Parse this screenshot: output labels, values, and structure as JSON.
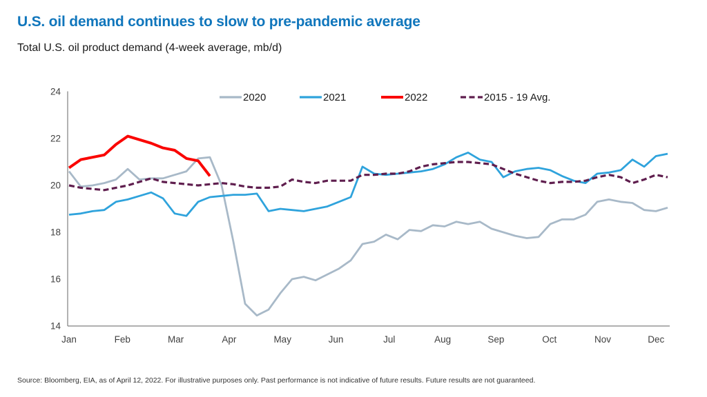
{
  "header": {
    "title": "U.S. oil demand continues to slow to pre-pandemic average",
    "subtitle": "Total U.S. oil product demand (4-week average, mb/d)"
  },
  "footer": {
    "source": "Source: Bloomberg, EIA, as of April 12, 2022. For illustrative purposes only. Past performance is not indicative of future results. Future results are not guaranteed."
  },
  "colors": {
    "title_accent": "#1076bc",
    "axis_line": "#7f7f7f",
    "tick_label": "#404040",
    "legend_text": "#1a1a1a"
  },
  "chart_data": {
    "type": "line",
    "title": "Total U.S. oil product demand (4-week average, mb/d)",
    "xlabel": "",
    "ylabel": "",
    "ylim": [
      14,
      24
    ],
    "yticks": [
      14,
      16,
      18,
      20,
      22,
      24
    ],
    "grid": false,
    "legend_position": "top",
    "categories": [
      "Jan",
      "Feb",
      "Mar",
      "Apr",
      "May",
      "Jun",
      "Jul",
      "Aug",
      "Sep",
      "Oct",
      "Nov",
      "Dec"
    ],
    "x_unit": "weekly points (4-week average)",
    "points_per_year": 52,
    "series": [
      {
        "name": "2020",
        "color": "#a8b9c8",
        "width": 2.8,
        "dash": null,
        "values": [
          20.6,
          19.95,
          20.0,
          20.1,
          20.25,
          20.7,
          20.25,
          20.3,
          20.3,
          20.45,
          20.6,
          21.15,
          21.2,
          20.0,
          17.6,
          14.95,
          14.45,
          14.7,
          15.4,
          16.0,
          16.1,
          15.95,
          16.2,
          16.45,
          16.8,
          17.5,
          17.6,
          17.9,
          17.7,
          18.1,
          18.05,
          18.3,
          18.25,
          18.45,
          18.35,
          18.45,
          18.15,
          18.0,
          17.85,
          17.75,
          17.8,
          18.35,
          18.55,
          18.55,
          18.75,
          19.3,
          19.4,
          19.3,
          19.25,
          18.95,
          18.9,
          19.05
        ]
      },
      {
        "name": "2021",
        "color": "#2fa3dc",
        "width": 2.8,
        "dash": null,
        "values": [
          18.75,
          18.8,
          18.9,
          18.95,
          19.3,
          19.4,
          19.55,
          19.7,
          19.45,
          18.8,
          18.7,
          19.3,
          19.5,
          19.55,
          19.6,
          19.6,
          19.65,
          18.9,
          19.0,
          18.95,
          18.9,
          19.0,
          19.1,
          19.3,
          19.5,
          20.8,
          20.5,
          20.45,
          20.5,
          20.55,
          20.6,
          20.7,
          20.9,
          21.2,
          21.4,
          21.1,
          21.0,
          20.35,
          20.6,
          20.7,
          20.75,
          20.65,
          20.4,
          20.2,
          20.1,
          20.5,
          20.55,
          20.65,
          21.1,
          20.8,
          21.25,
          21.35
        ]
      },
      {
        "name": "2022",
        "color": "#fa0400",
        "width": 4,
        "dash": null,
        "values": [
          20.75,
          21.1,
          21.2,
          21.3,
          21.75,
          22.1,
          21.95,
          21.8,
          21.6,
          21.5,
          21.15,
          21.05,
          20.4
        ]
      },
      {
        "name": "2015 - 19 Avg.",
        "color": "#5f1e4e",
        "width": 3.2,
        "dash": "8 4.5",
        "values": [
          20.0,
          19.9,
          19.85,
          19.8,
          19.9,
          20.0,
          20.15,
          20.3,
          20.15,
          20.1,
          20.05,
          20.0,
          20.05,
          20.1,
          20.05,
          19.95,
          19.9,
          19.9,
          19.95,
          20.25,
          20.15,
          20.1,
          20.2,
          20.2,
          20.2,
          20.45,
          20.45,
          20.5,
          20.5,
          20.6,
          20.8,
          20.9,
          20.95,
          21.0,
          21.0,
          20.95,
          20.9,
          20.7,
          20.5,
          20.35,
          20.2,
          20.1,
          20.15,
          20.15,
          20.2,
          20.35,
          20.45,
          20.35,
          20.1,
          20.25,
          20.45,
          20.35
        ]
      }
    ]
  }
}
